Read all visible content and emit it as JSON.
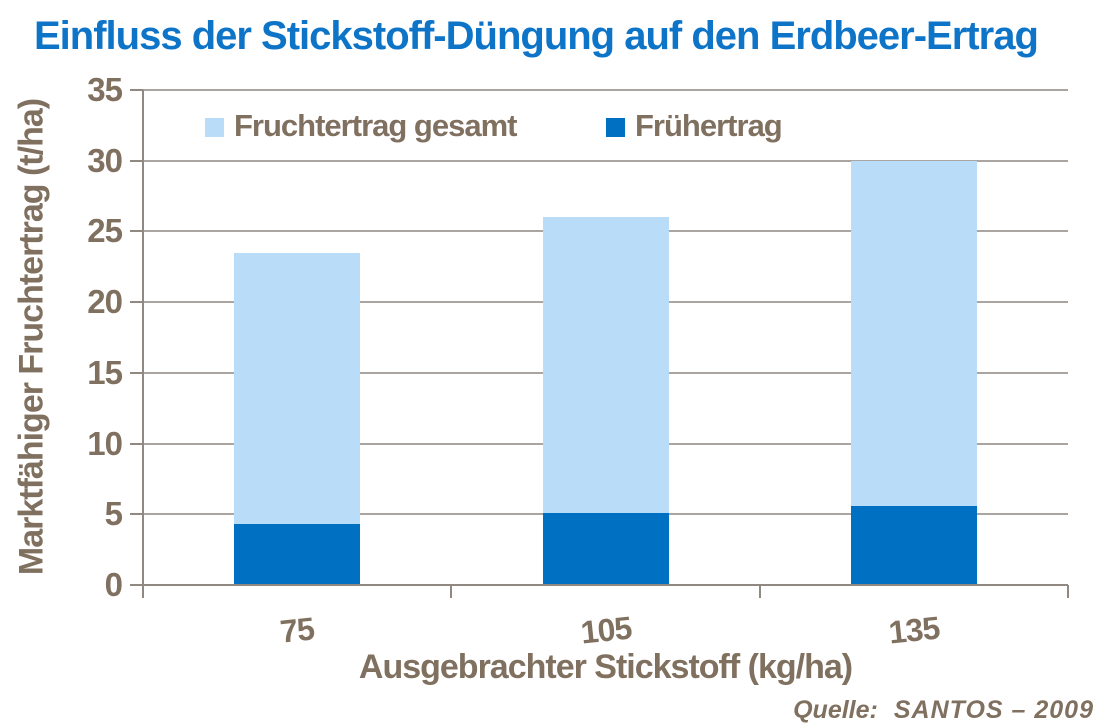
{
  "title": {
    "text": "Einfluss der Stickstoff-Düngung auf den Erdbeer-Ertrag",
    "color": "#0e74c8"
  },
  "legend": {
    "items": [
      {
        "label": "Fruchtertrag gesamt",
        "color": "#b9ddf8"
      },
      {
        "label": "Frühertrag",
        "color": "#0071c2"
      }
    ]
  },
  "source": {
    "label": "Quelle:",
    "text": "SANTOS – 2009"
  },
  "colors": {
    "title_blue": "#0e74c8",
    "text_brown": "#80705f",
    "bar_light_blue": "#b9ddf8",
    "bar_dark_blue": "#0071c2",
    "gridline_gray": "#aaa5a0",
    "axis_gray": "#8f8982"
  },
  "chart_data": {
    "type": "bar",
    "stacked": true,
    "title": "Einfluss der Stickstoff-Düngung auf den Erdbeer-Ertrag",
    "categories": [
      "75",
      "105",
      "135"
    ],
    "series": [
      {
        "name": "Fruchtertrag gesamt",
        "color": "#b9ddf8",
        "values": [
          23.5,
          26,
          30
        ]
      },
      {
        "name": "Frühertrag",
        "color": "#0071c2",
        "values": [
          4.3,
          5.1,
          5.6
        ]
      }
    ],
    "xlabel": "Ausgebrachter Stickstoff (kg/ha)",
    "ylabel": "Marktfähiger Fruchtertrag (t/ha)",
    "ylim": [
      0,
      35
    ],
    "yticks": [
      0,
      5,
      10,
      15,
      20,
      25,
      30,
      35
    ],
    "grid": true,
    "legend_position": "top-inside"
  }
}
